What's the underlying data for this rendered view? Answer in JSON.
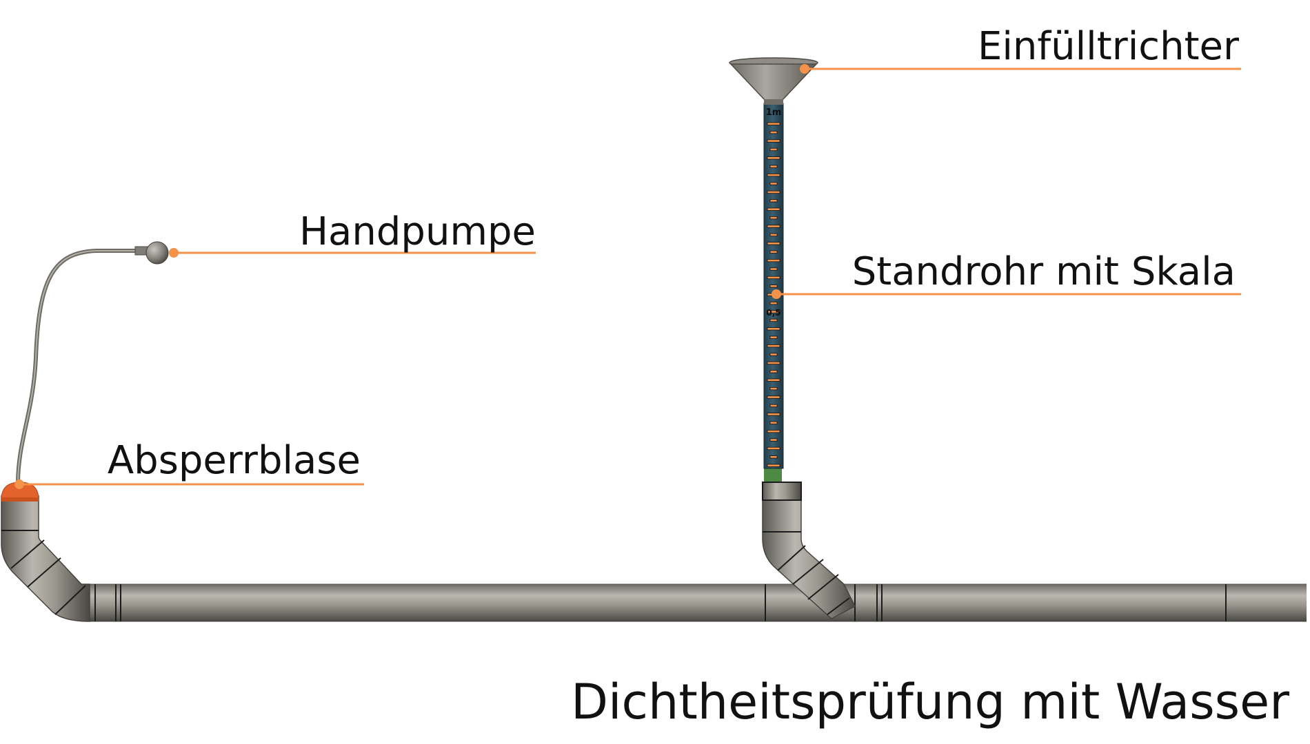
{
  "labels": {
    "funnel": "Einfülltrichter",
    "pump": "Handpumpe",
    "standpipe": "Standrohr mit Skala",
    "bladder": "Absperrblase",
    "title": "Dichtheitsprüfung mit Wasser"
  },
  "scale": {
    "top_mark": "1m",
    "mid_mark": "0,5"
  },
  "colors": {
    "leader": "#F4924A",
    "pipe": "#8E8C84",
    "pipe_dark": "#55534D",
    "water": "#2E4F5E",
    "bladder": "#E4622C",
    "adapter": "#4F8A45",
    "text": "#111111"
  }
}
